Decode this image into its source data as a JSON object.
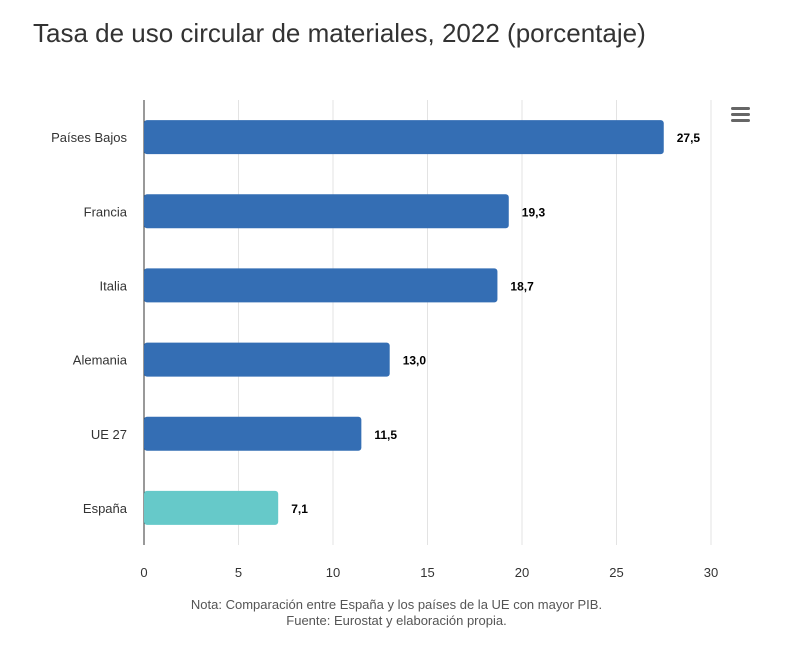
{
  "chart_data": {
    "type": "bar",
    "orientation": "horizontal",
    "title": "Tasa de uso circular de materiales, 2022 (porcentaje)",
    "categories": [
      "Países Bajos",
      "Francia",
      "Italia",
      "Alemania",
      "UE 27",
      "España"
    ],
    "values": [
      27.5,
      19.3,
      18.7,
      13.0,
      11.5,
      7.1
    ],
    "data_labels": [
      "27,5",
      "19,3",
      "18,7",
      "13,0",
      "11,5",
      "7,1"
    ],
    "colors": [
      "#346eb4",
      "#346eb4",
      "#346eb4",
      "#346eb4",
      "#346eb4",
      "#66c9c9"
    ],
    "xlim": [
      0,
      30
    ],
    "xticks": [
      0,
      5,
      10,
      15,
      20,
      25,
      30
    ],
    "xlabel": "",
    "ylabel": "",
    "grid": "vertical",
    "legend": "none"
  },
  "notes": {
    "line1": "Nota: Comparación entre España y los países de la UE con mayor PIB.",
    "line2": "Fuente: Eurostat y elaboración propia."
  },
  "menu_icon": "hamburger-menu-icon"
}
